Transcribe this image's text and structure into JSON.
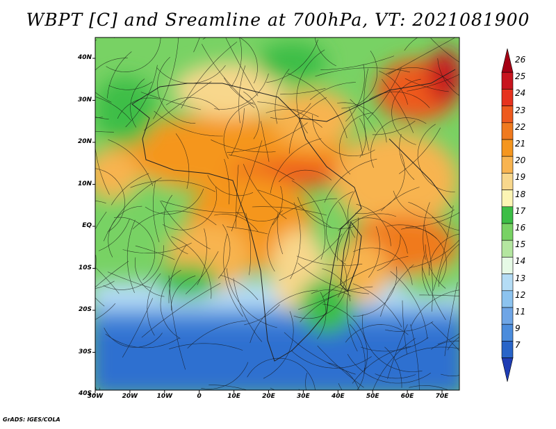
{
  "title": "WBPT [C] and Sreamline at 700hPa, VT: 2021081900",
  "credit": "GrADS: IGES/COLA",
  "map": {
    "projection": "lat-lon",
    "lon_range": [
      -30,
      75
    ],
    "lat_range": [
      -40,
      45
    ],
    "lat_labels": [
      "40N",
      "30N",
      "20N",
      "10N",
      "EQ",
      "10S",
      "20S",
      "30S",
      "40S"
    ],
    "lon_labels": [
      "30W",
      "20W",
      "10W",
      "0",
      "10E",
      "20E",
      "30E",
      "40E",
      "50E",
      "60E",
      "70E"
    ],
    "field": "wet-bulb potential temperature",
    "overlay": "streamlines",
    "coastlines": true
  },
  "colorbar": {
    "levels": [
      "26",
      "25",
      "24",
      "23",
      "22",
      "21",
      "20",
      "19",
      "18",
      "17",
      "16",
      "15",
      "14",
      "13",
      "12",
      "11",
      "9",
      "7"
    ],
    "colors": [
      "#a50014",
      "#c8141e",
      "#e6321e",
      "#ee5a1e",
      "#f07a1e",
      "#f5961e",
      "#f8b450",
      "#f8d78c",
      "#fcf5b4",
      "#3cbe46",
      "#78d264",
      "#b4e6a0",
      "#e6fae6",
      "#b4dcf5",
      "#8cc3ef",
      "#6ea5e6",
      "#4b8cdc",
      "#2864c8",
      "#1e3cb4"
    ]
  }
}
